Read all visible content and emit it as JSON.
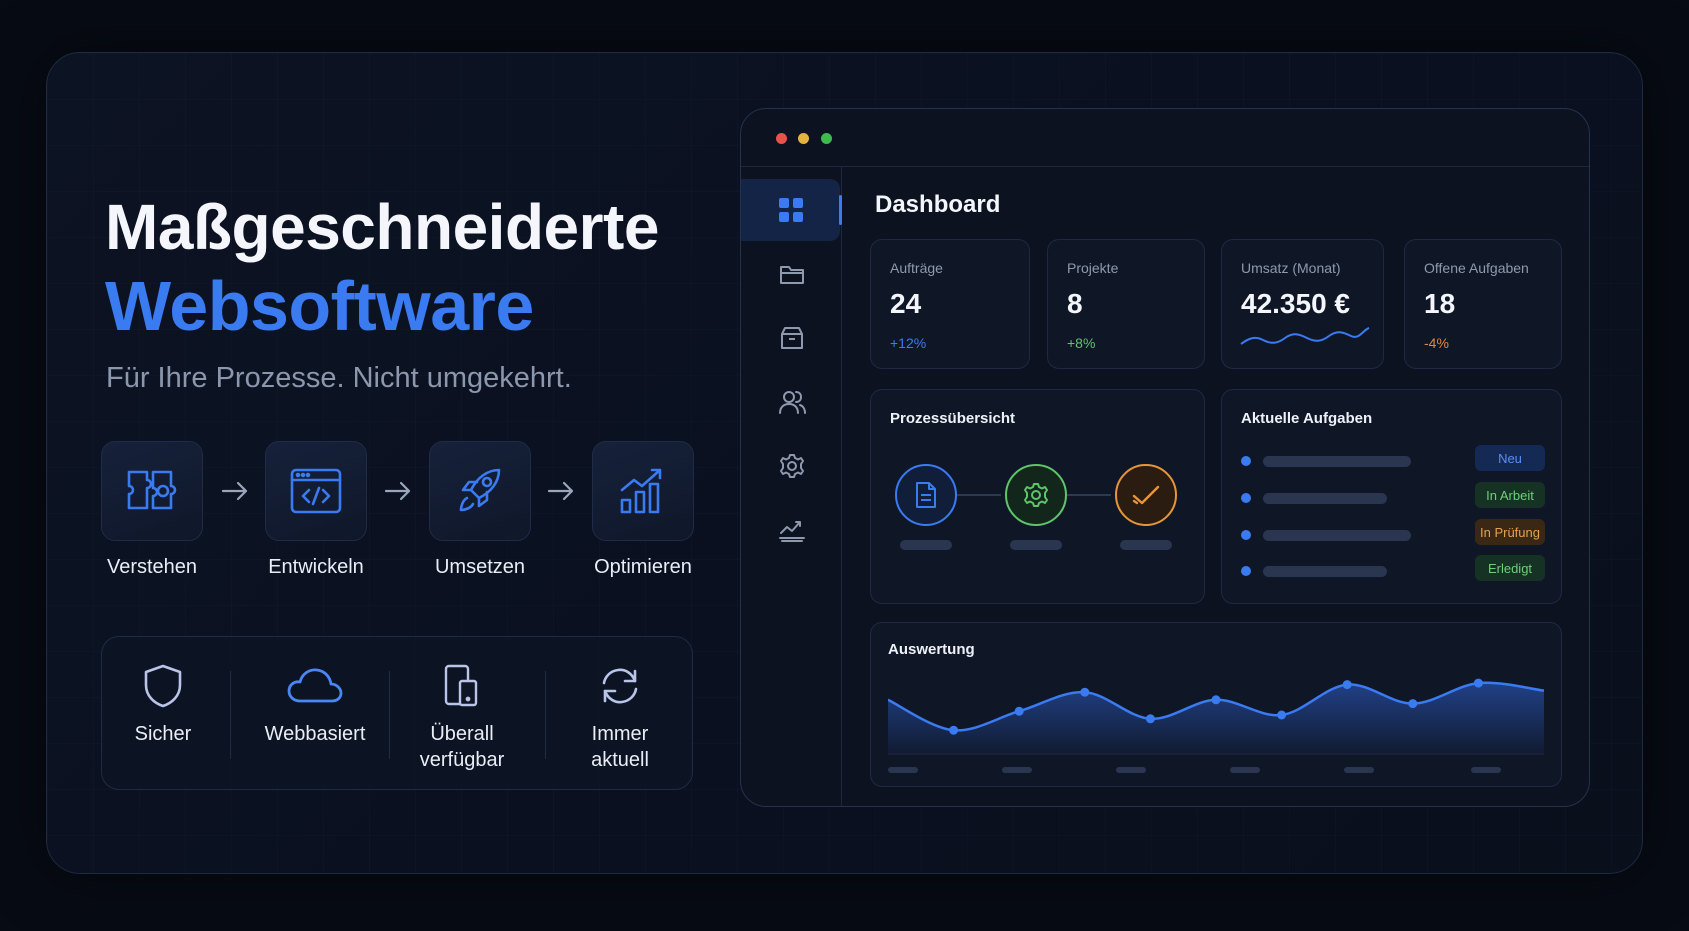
{
  "hero": {
    "title_line1": "Maßgeschneiderte",
    "title_line2": "Websoftware",
    "subtitle": "Für Ihre Prozesse. Nicht umgekehrt."
  },
  "steps": [
    {
      "label": "Verstehen",
      "icon": "puzzle-icon"
    },
    {
      "label": "Entwickeln",
      "icon": "code-window-icon"
    },
    {
      "label": "Umsetzen",
      "icon": "rocket-icon"
    },
    {
      "label": "Optimieren",
      "icon": "chart-growth-icon"
    }
  ],
  "features": [
    {
      "label": "Sicher",
      "icon": "shield-icon"
    },
    {
      "label": "Webbasiert",
      "icon": "cloud-icon"
    },
    {
      "label_line1": "Überall",
      "label_line2": "verfügbar",
      "icon": "devices-icon"
    },
    {
      "label_line1": "Immer",
      "label_line2": "aktuell",
      "icon": "refresh-icon"
    }
  ],
  "dashboard": {
    "title": "Dashboard",
    "window_dots": [
      "#e5534b",
      "#e3b341",
      "#3fb950"
    ],
    "sidebar": [
      "grid-icon",
      "folder-icon",
      "archive-icon",
      "users-icon",
      "gear-icon",
      "analytics-icon"
    ],
    "stats": [
      {
        "label": "Aufträge",
        "value": "24",
        "delta": "+12%",
        "delta_color": "#3a7bf2"
      },
      {
        "label": "Projekte",
        "value": "8",
        "delta": "+8%",
        "delta_color": "#5fc46a"
      },
      {
        "label": "Umsatz (Monat)",
        "value": "42.350 €",
        "delta": "",
        "delta_color": "#3a7bf2"
      },
      {
        "label": "Offene Aufgaben",
        "value": "18",
        "delta": "-4%",
        "delta_color": "#e8853a"
      }
    ],
    "process": {
      "title": "Prozessübersicht",
      "steps": [
        {
          "icon": "document-icon",
          "color": "#3a7bf2"
        },
        {
          "icon": "gear-icon",
          "color": "#5fc46a"
        },
        {
          "icon": "check-icon",
          "color": "#e8953a"
        }
      ]
    },
    "tasks": {
      "title": "Aktuelle Aufgaben",
      "items": [
        {
          "status": "Neu",
          "color": "#5a8df5",
          "bg": "#142a55"
        },
        {
          "status": "In Arbeit",
          "color": "#6fcf7a",
          "bg": "#163224"
        },
        {
          "status": "In Prüfung",
          "color": "#e8a04a",
          "bg": "#3a2814"
        },
        {
          "status": "Erledigt",
          "color": "#6fcf7a",
          "bg": "#163224"
        }
      ]
    },
    "analytics": {
      "title": "Auswertung"
    }
  },
  "chart_data": {
    "type": "area",
    "title": "Auswertung",
    "x": [
      0,
      1,
      2,
      3,
      4,
      5,
      6,
      7,
      8,
      9,
      10
    ],
    "values": [
      0.7,
      0.3,
      0.55,
      0.8,
      0.45,
      0.7,
      0.5,
      0.9,
      0.65,
      0.92,
      0.82
    ],
    "ylim": [
      0,
      1
    ],
    "grid": false,
    "color": "#3a7bf2"
  }
}
